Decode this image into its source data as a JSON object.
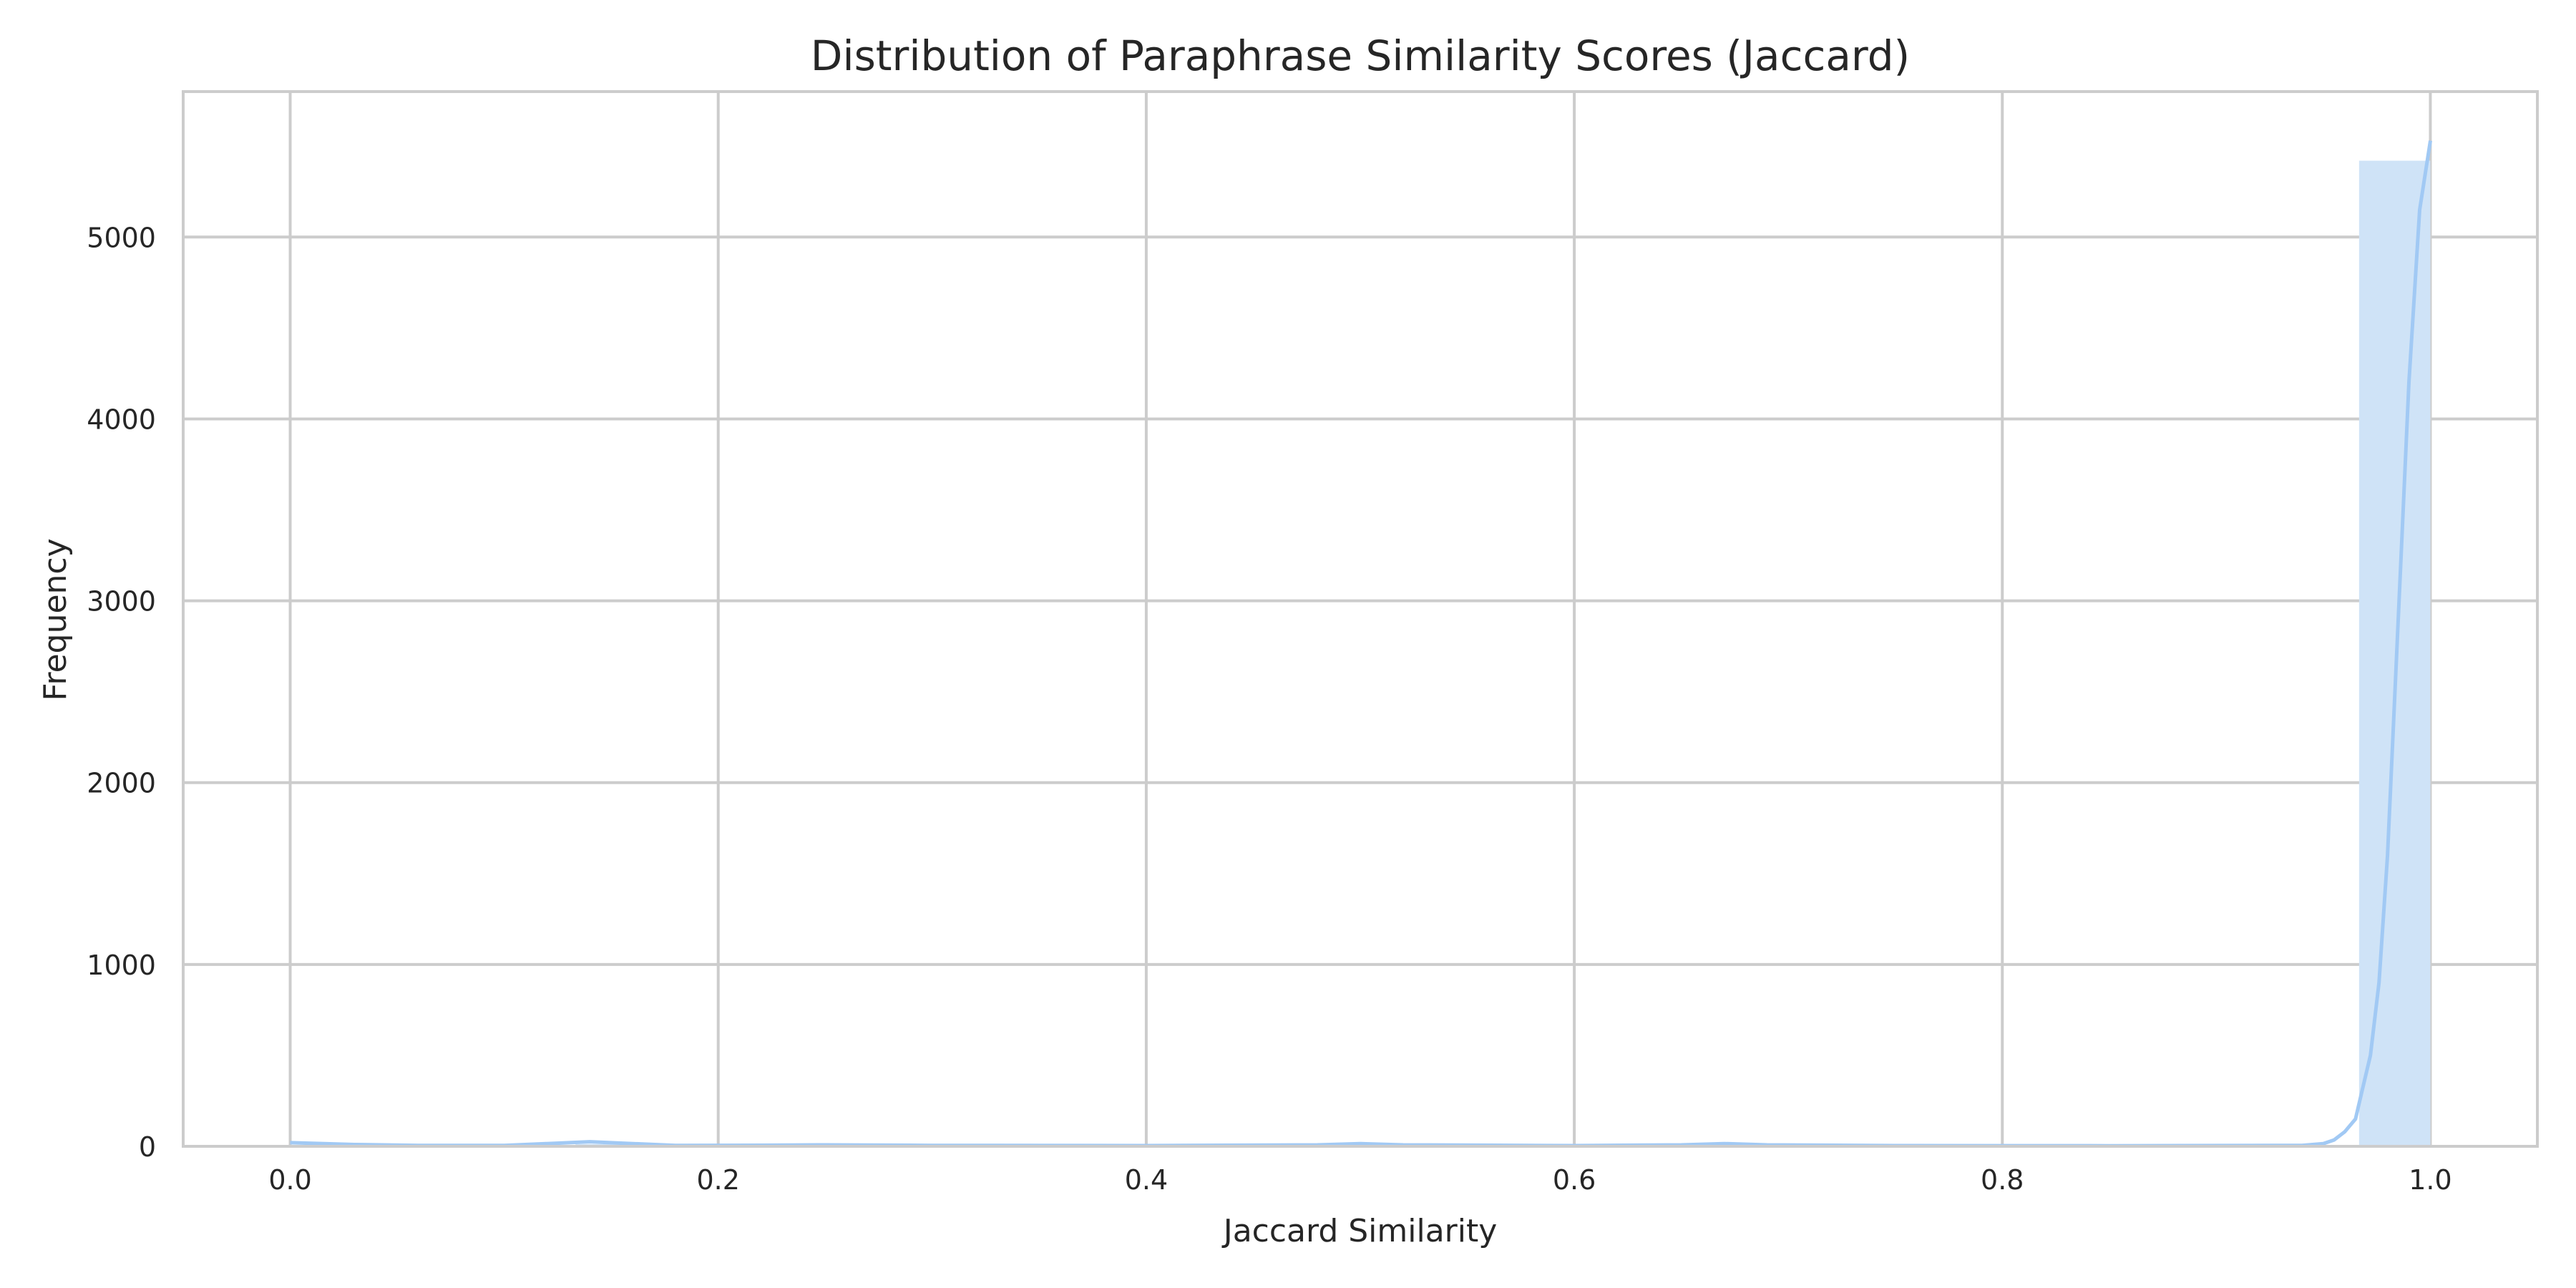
{
  "chart_data": {
    "type": "bar",
    "title": "Distribution of Paraphrase Similarity Scores (Jaccard)",
    "xlabel": "Jaccard Similarity",
    "ylabel": "Frequency",
    "xlim": [
      -0.05,
      1.05
    ],
    "ylim": [
      0,
      5800
    ],
    "xticks": [
      0.0,
      0.2,
      0.4,
      0.6,
      0.8,
      1.0
    ],
    "xtick_labels": [
      "0.0",
      "0.2",
      "0.4",
      "0.6",
      "0.8",
      "1.0"
    ],
    "yticks": [
      0,
      1000,
      2000,
      3000,
      4000,
      5000
    ],
    "ytick_labels": [
      "0",
      "1000",
      "2000",
      "3000",
      "4000",
      "5000"
    ],
    "grid": true,
    "bins": [
      {
        "x0": 0.0,
        "x1": 0.0333,
        "count": 8
      },
      {
        "x0": 0.1333,
        "x1": 0.1667,
        "count": 12
      },
      {
        "x0": 0.4667,
        "x1": 0.5,
        "count": 4
      },
      {
        "x0": 0.5,
        "x1": 0.5333,
        "count": 5
      },
      {
        "x0": 0.6667,
        "x1": 0.7,
        "count": 6
      },
      {
        "x0": 0.9667,
        "x1": 1.0,
        "count": 5420
      }
    ],
    "kde": {
      "x": [
        0.0,
        0.03,
        0.06,
        0.1,
        0.12,
        0.14,
        0.16,
        0.18,
        0.22,
        0.25,
        0.3,
        0.4,
        0.48,
        0.5,
        0.52,
        0.6,
        0.65,
        0.67,
        0.69,
        0.75,
        0.85,
        0.94,
        0.95,
        0.955,
        0.96,
        0.965,
        0.968,
        0.972,
        0.976,
        0.98,
        0.985,
        0.99,
        0.995,
        1.0
      ],
      "y": [
        20,
        10,
        5,
        5,
        15,
        25,
        15,
        5,
        6,
        8,
        5,
        4,
        8,
        15,
        8,
        4,
        8,
        15,
        8,
        4,
        3,
        5,
        15,
        35,
        80,
        150,
        300,
        500,
        900,
        1600,
        2900,
        4200,
        5150,
        5530
      ]
    },
    "colors": {
      "bar": "#cfe3f7",
      "kde": "#a1c9f4",
      "grid": "#cccccc",
      "spine": "#cccccc",
      "background": "#ffffff"
    }
  }
}
